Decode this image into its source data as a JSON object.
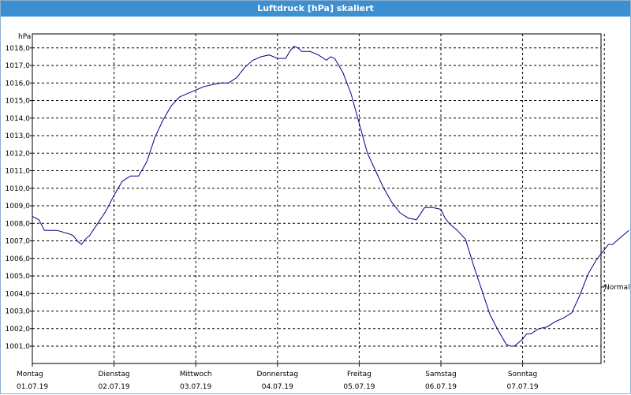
{
  "window": {
    "title": "Luftdruck [hPa] skaliert"
  },
  "chart_data": {
    "type": "line",
    "title": "Luftdruck [hPa] skaliert",
    "ylabel": "hPa",
    "xlabel": "",
    "ylim": [
      1000.0,
      1018.8
    ],
    "xlim": [
      0,
      7
    ],
    "grid": true,
    "y_ticks": [
      "1001,0",
      "1002,0",
      "1003,0",
      "1004,0",
      "1005,0",
      "1006,0",
      "1007,0",
      "1008,0",
      "1009,0",
      "1010,0",
      "1011,0",
      "1012,0",
      "1013,0",
      "1014,0",
      "1015,0",
      "1016,0",
      "1017,0",
      "1018,0"
    ],
    "x_ticks": [
      {
        "day": "Montag",
        "date": "01.07.19"
      },
      {
        "day": "Dienstag",
        "date": "02.07.19"
      },
      {
        "day": "Mittwoch",
        "date": "03.07.19"
      },
      {
        "day": "Donnerstag",
        "date": "04.07.19"
      },
      {
        "day": "Freitag",
        "date": "05.07.19"
      },
      {
        "day": "Samstag",
        "date": "06.07.19"
      },
      {
        "day": "Sonntag",
        "date": "07.07.19"
      }
    ],
    "series": [
      {
        "name": "Normal",
        "color": "#00008b",
        "points": [
          [
            0.0,
            1008.4
          ],
          [
            0.08,
            1008.2
          ],
          [
            0.15,
            1007.6
          ],
          [
            0.3,
            1007.6
          ],
          [
            0.45,
            1007.4
          ],
          [
            0.5,
            1007.3
          ],
          [
            0.55,
            1007.0
          ],
          [
            0.6,
            1006.8
          ],
          [
            0.65,
            1007.1
          ],
          [
            0.7,
            1007.3
          ],
          [
            0.8,
            1008.0
          ],
          [
            0.9,
            1008.7
          ],
          [
            1.0,
            1009.6
          ],
          [
            1.1,
            1010.4
          ],
          [
            1.2,
            1010.7
          ],
          [
            1.3,
            1010.7
          ],
          [
            1.4,
            1011.5
          ],
          [
            1.5,
            1012.9
          ],
          [
            1.6,
            1013.9
          ],
          [
            1.7,
            1014.7
          ],
          [
            1.8,
            1015.2
          ],
          [
            1.9,
            1015.4
          ],
          [
            2.0,
            1015.6
          ],
          [
            2.1,
            1015.8
          ],
          [
            2.2,
            1015.9
          ],
          [
            2.3,
            1016.0
          ],
          [
            2.4,
            1016.0
          ],
          [
            2.5,
            1016.3
          ],
          [
            2.6,
            1016.9
          ],
          [
            2.7,
            1017.3
          ],
          [
            2.8,
            1017.5
          ],
          [
            2.9,
            1017.6
          ],
          [
            3.0,
            1017.4
          ],
          [
            3.1,
            1017.4
          ],
          [
            3.15,
            1017.8
          ],
          [
            3.2,
            1018.1
          ],
          [
            3.25,
            1018.0
          ],
          [
            3.3,
            1017.8
          ],
          [
            3.4,
            1017.8
          ],
          [
            3.5,
            1017.6
          ],
          [
            3.6,
            1017.3
          ],
          [
            3.65,
            1017.5
          ],
          [
            3.7,
            1017.4
          ],
          [
            3.8,
            1016.6
          ],
          [
            3.9,
            1015.4
          ],
          [
            4.0,
            1013.7
          ],
          [
            4.1,
            1012.0
          ],
          [
            4.2,
            1011.0
          ],
          [
            4.3,
            1010.0
          ],
          [
            4.4,
            1009.2
          ],
          [
            4.5,
            1008.6
          ],
          [
            4.6,
            1008.3
          ],
          [
            4.7,
            1008.2
          ],
          [
            4.8,
            1008.9
          ],
          [
            4.9,
            1008.9
          ],
          [
            5.0,
            1008.8
          ],
          [
            5.05,
            1008.3
          ],
          [
            5.1,
            1008.0
          ],
          [
            5.2,
            1007.6
          ],
          [
            5.3,
            1007.1
          ],
          [
            5.4,
            1005.6
          ],
          [
            5.5,
            1004.2
          ],
          [
            5.6,
            1002.8
          ],
          [
            5.7,
            1001.9
          ],
          [
            5.8,
            1001.1
          ],
          [
            5.85,
            1001.0
          ],
          [
            5.9,
            1001.0
          ],
          [
            6.0,
            1001.4
          ],
          [
            6.05,
            1001.7
          ],
          [
            6.1,
            1001.7
          ],
          [
            6.2,
            1002.0
          ],
          [
            6.3,
            1002.1
          ],
          [
            6.4,
            1002.4
          ],
          [
            6.5,
            1002.6
          ],
          [
            6.6,
            1002.9
          ],
          [
            6.7,
            1003.9
          ],
          [
            6.8,
            1005.1
          ],
          [
            6.9,
            1005.9
          ],
          [
            7.0,
            1006.5
          ],
          [
            7.05,
            1006.8
          ],
          [
            7.1,
            1006.8
          ],
          [
            7.2,
            1007.2
          ],
          [
            7.3,
            1007.6
          ]
        ]
      }
    ]
  }
}
